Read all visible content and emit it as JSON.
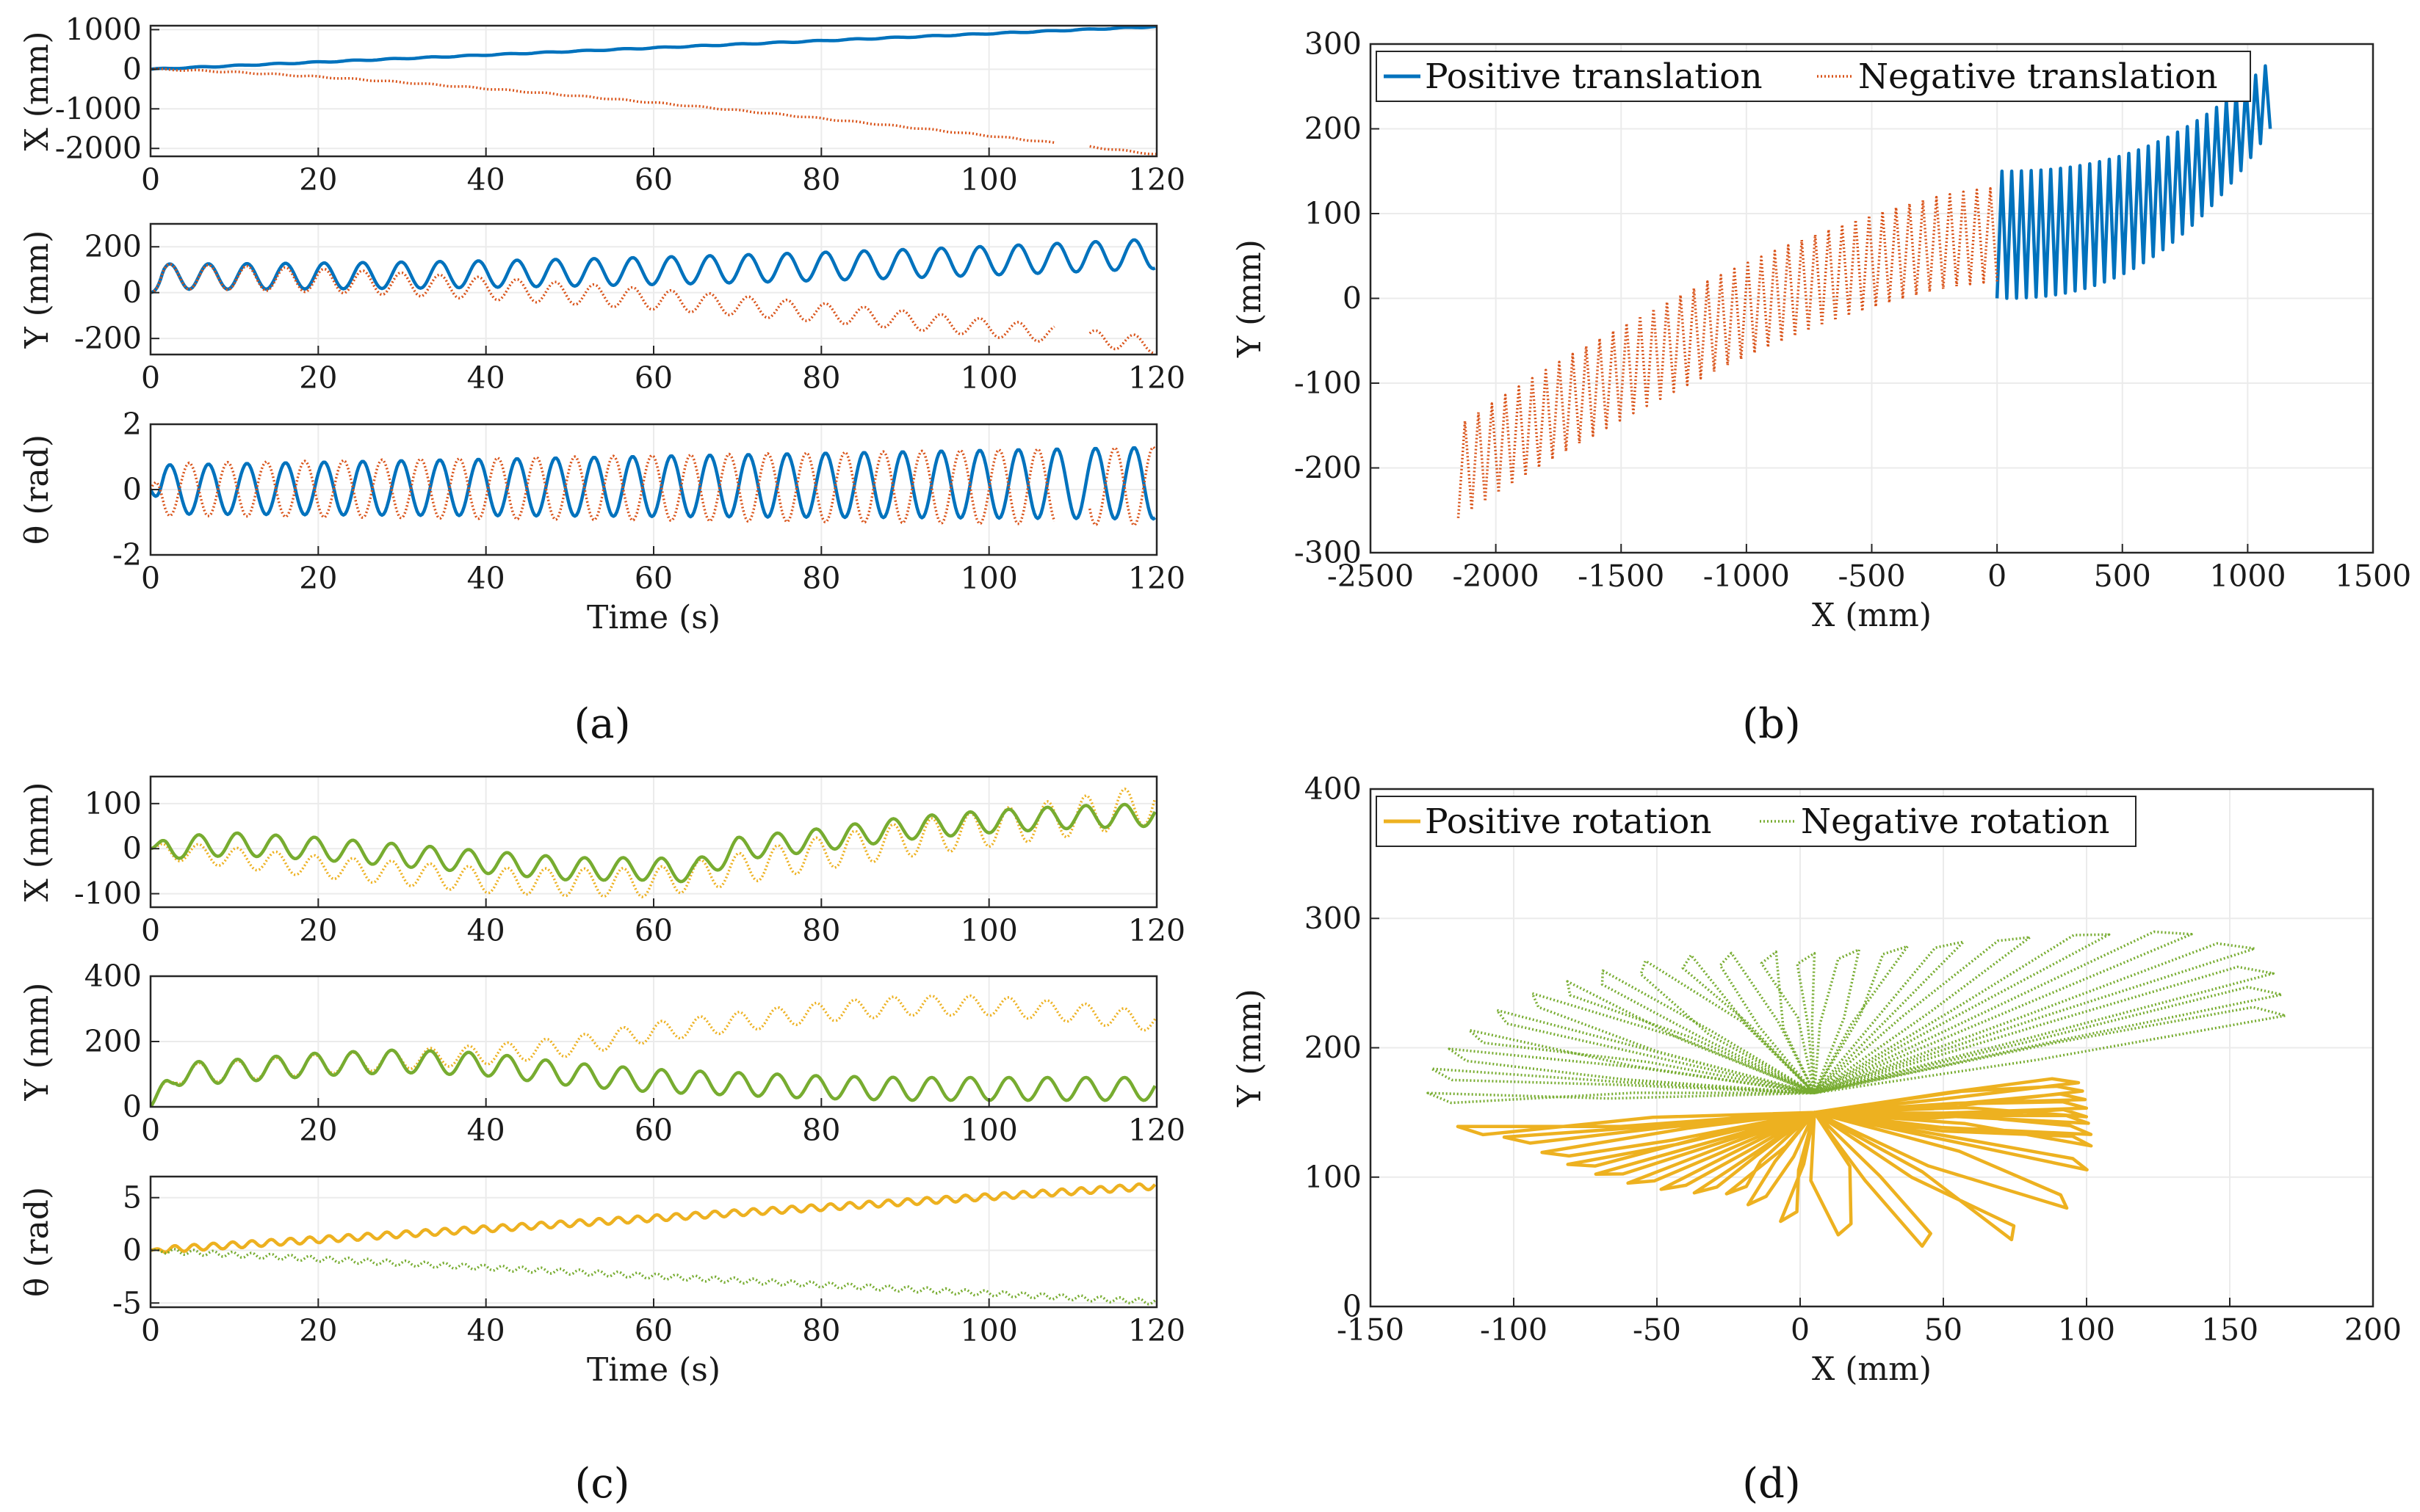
{
  "colors": {
    "pos_translation": "#0072bd",
    "neg_translation": "#d95319",
    "pos_rotation": "#edb120",
    "neg_rotation": "#77ac30",
    "grid": "#ebebeb",
    "axis": "#262626"
  },
  "panel_labels": {
    "a": "(a)",
    "b": "(b)",
    "c": "(c)",
    "d": "(d)"
  },
  "chart_data": [
    {
      "id": "a1",
      "type": "line",
      "panel": "a",
      "ylabel": "X (mm)",
      "xlabel": "",
      "xlim": [
        0,
        120
      ],
      "ylim": [
        -2200,
        1100
      ],
      "xticks": [
        0,
        20,
        40,
        60,
        80,
        100,
        120
      ],
      "yticks": [
        -2000,
        -1000,
        0,
        1000
      ],
      "grid": true,
      "series": [
        {
          "name": "Positive translation",
          "color": "pos_translation",
          "style": "solid",
          "gen": {
            "kind": "drift",
            "end": 1080,
            "power": 1.0,
            "amp": 12,
            "period": 4.6
          }
        },
        {
          "name": "Negative translation",
          "color": "neg_translation",
          "style": "dotted",
          "gen": {
            "kind": "drift",
            "end": -2150,
            "power": 1.35,
            "amp": 14,
            "period": 4.6,
            "gap": [
              108,
              112
            ]
          }
        }
      ]
    },
    {
      "id": "a2",
      "type": "line",
      "panel": "a",
      "ylabel": "Y (mm)",
      "xlabel": "",
      "xlim": [
        0,
        120
      ],
      "ylim": [
        -270,
        300
      ],
      "xticks": [
        0,
        20,
        40,
        60,
        80,
        100,
        120
      ],
      "yticks": [
        -200,
        0,
        200
      ],
      "grid": true,
      "series": [
        {
          "name": "Positive translation",
          "color": "pos_translation",
          "style": "solid",
          "gen": {
            "kind": "osc",
            "c0": 70,
            "c1": 170,
            "a0": 55,
            "a1": 65,
            "period": 4.6,
            "power": 2
          }
        },
        {
          "name": "Negative translation",
          "color": "neg_translation",
          "style": "dotted",
          "gen": {
            "kind": "osc",
            "c0": 70,
            "c1": -230,
            "a0": 55,
            "a1": 35,
            "period": 4.6,
            "power": 1.6,
            "gap": [
              108,
              112
            ]
          }
        }
      ]
    },
    {
      "id": "a3",
      "type": "line",
      "panel": "a",
      "ylabel": "θ (rad)",
      "xlabel": "Time (s)",
      "xlim": [
        0,
        120
      ],
      "ylim": [
        -2,
        2
      ],
      "xticks": [
        0,
        20,
        40,
        60,
        80,
        100,
        120
      ],
      "yticks": [
        -2,
        0,
        2
      ],
      "grid": true,
      "series": [
        {
          "name": "Positive translation",
          "color": "pos_translation",
          "style": "solid",
          "gen": {
            "kind": "osc",
            "c0": 0,
            "c1": 0.2,
            "a0": 0.75,
            "a1": 1.1,
            "period": 4.6,
            "power": 1
          }
        },
        {
          "name": "Negative translation",
          "color": "neg_translation",
          "style": "dotted",
          "gen": {
            "kind": "osc",
            "c0": 0,
            "c1": 0.1,
            "a0": 0.8,
            "a1": 1.2,
            "period": 4.6,
            "power": 1,
            "phase": 3.14159,
            "gap": [
              108,
              112
            ]
          }
        }
      ]
    },
    {
      "id": "b",
      "type": "line",
      "panel": "b",
      "title": "",
      "xlabel": "X (mm)",
      "ylabel": "Y (mm)",
      "xlim": [
        -2500,
        1500
      ],
      "ylim": [
        -300,
        300
      ],
      "xticks": [
        -2500,
        -2000,
        -1500,
        -1000,
        -500,
        0,
        500,
        1000,
        1500
      ],
      "yticks": [
        -300,
        -200,
        -100,
        0,
        100,
        200,
        300
      ],
      "grid": true,
      "legend": {
        "position": "top-left",
        "entries": [
          {
            "label": "Positive translation",
            "color": "pos_translation",
            "style": "solid"
          },
          {
            "label": "Negative translation",
            "color": "neg_translation",
            "style": "dotted"
          }
        ]
      },
      "series": [
        {
          "name": "Positive translation",
          "color": "pos_translation",
          "style": "solid",
          "gen": {
            "kind": "zig",
            "x0": 0,
            "x1": 1090,
            "n": 28,
            "loA": 0,
            "loB": 200,
            "hiA": 150,
            "hiB": 280,
            "loP": 2.5,
            "hiP": 2.5
          }
        },
        {
          "name": "Negative translation",
          "color": "neg_translation",
          "style": "dotted",
          "gen": {
            "kind": "zig",
            "x0": 0,
            "x1": -2150,
            "n": 40,
            "loA": 20,
            "loB": -260,
            "hiA": 130,
            "hiB": -150,
            "loP": 1.5,
            "hiP": 1.5
          }
        }
      ]
    },
    {
      "id": "c1",
      "type": "line",
      "panel": "c",
      "ylabel": "X (mm)",
      "xlabel": "",
      "xlim": [
        0,
        120
      ],
      "ylim": [
        -130,
        160
      ],
      "xticks": [
        0,
        20,
        40,
        60,
        80,
        100,
        120
      ],
      "yticks": [
        -100,
        0,
        100
      ],
      "grid": true,
      "series": [
        {
          "name": "Positive rotation",
          "color": "pos_rotation",
          "style": "dotted",
          "gen": {
            "kind": "pts",
            "pts": [
              [
                0,
                0
              ],
              [
                10,
                -20
              ],
              [
                20,
                -40
              ],
              [
                30,
                -55
              ],
              [
                40,
                -70
              ],
              [
                50,
                -75
              ],
              [
                60,
                -75
              ],
              [
                70,
                -45
              ],
              [
                80,
                -10
              ],
              [
                90,
                20
              ],
              [
                100,
                45
              ],
              [
                110,
                70
              ],
              [
                120,
                100
              ]
            ],
            "amp0": 20,
            "amp1": 45,
            "period": 4.6
          }
        },
        {
          "name": "Negative rotation",
          "color": "neg_rotation",
          "style": "solid",
          "gen": {
            "kind": "pts",
            "pts": [
              [
                0,
                0
              ],
              [
                10,
                10
              ],
              [
                20,
                0
              ],
              [
                30,
                -15
              ],
              [
                40,
                -30
              ],
              [
                50,
                -45
              ],
              [
                60,
                -45
              ],
              [
                65,
                -50
              ],
              [
                70,
                0
              ],
              [
                80,
                20
              ],
              [
                90,
                45
              ],
              [
                100,
                60
              ],
              [
                110,
                70
              ],
              [
                120,
                75
              ]
            ],
            "amp0": 25,
            "amp1": 25,
            "period": 4.6
          }
        }
      ]
    },
    {
      "id": "c2",
      "type": "line",
      "panel": "c",
      "ylabel": "Y (mm)",
      "xlabel": "",
      "xlim": [
        0,
        120
      ],
      "ylim": [
        0,
        400
      ],
      "xticks": [
        0,
        20,
        40,
        60,
        80,
        100,
        120
      ],
      "yticks": [
        0,
        200,
        400
      ],
      "grid": true,
      "series": [
        {
          "name": "Positive rotation",
          "color": "pos_rotation",
          "style": "dotted",
          "gen": {
            "kind": "pts",
            "pts": [
              [
                0,
                0
              ],
              [
                3,
                100
              ],
              [
                10,
                110
              ],
              [
                20,
                130
              ],
              [
                30,
                145
              ],
              [
                40,
                160
              ],
              [
                50,
                185
              ],
              [
                60,
                230
              ],
              [
                70,
                260
              ],
              [
                80,
                290
              ],
              [
                90,
                310
              ],
              [
                100,
                310
              ],
              [
                110,
                290
              ],
              [
                120,
                260
              ]
            ],
            "amp0": 30,
            "amp1": 30,
            "period": 4.6
          }
        },
        {
          "name": "Negative rotation",
          "color": "neg_rotation",
          "style": "solid",
          "gen": {
            "kind": "pts",
            "pts": [
              [
                0,
                0
              ],
              [
                3,
                100
              ],
              [
                10,
                110
              ],
              [
                20,
                130
              ],
              [
                30,
                140
              ],
              [
                40,
                130
              ],
              [
                50,
                100
              ],
              [
                60,
                80
              ],
              [
                70,
                70
              ],
              [
                80,
                60
              ],
              [
                90,
                55
              ],
              [
                100,
                55
              ],
              [
                110,
                55
              ],
              [
                120,
                55
              ]
            ],
            "amp0": 35,
            "amp1": 35,
            "period": 4.6
          }
        }
      ]
    },
    {
      "id": "c3",
      "type": "line",
      "panel": "c",
      "ylabel": "θ (rad)",
      "xlabel": "Time (s)",
      "xlim": [
        0,
        120
      ],
      "ylim": [
        -5.4,
        7
      ],
      "xticks": [
        0,
        20,
        40,
        60,
        80,
        100,
        120
      ],
      "yticks": [
        -5,
        0,
        5
      ],
      "grid": true,
      "series": [
        {
          "name": "Positive rotation",
          "color": "pos_rotation",
          "style": "solid",
          "gen": {
            "kind": "pts",
            "pts": [
              [
                0,
                0
              ],
              [
                120,
                6.1
              ]
            ],
            "amp0": 0.3,
            "amp1": 0.3,
            "period": 2.3
          }
        },
        {
          "name": "Negative rotation",
          "color": "neg_rotation",
          "style": "dotted",
          "gen": {
            "kind": "pts",
            "pts": [
              [
                0,
                0
              ],
              [
                120,
                -4.9
              ]
            ],
            "amp0": 0.25,
            "amp1": 0.25,
            "period": 2.3
          }
        }
      ]
    },
    {
      "id": "d",
      "type": "line",
      "panel": "d",
      "title": "",
      "xlabel": "X (mm)",
      "ylabel": "Y (mm)",
      "xlim": [
        -150,
        200
      ],
      "ylim": [
        0,
        400
      ],
      "xticks": [
        -150,
        -100,
        -50,
        0,
        50,
        100,
        150,
        200
      ],
      "yticks": [
        0,
        100,
        200,
        300,
        400
      ],
      "grid": true,
      "legend": {
        "position": "top-left",
        "entries": [
          {
            "label": "Positive rotation",
            "color": "pos_rotation",
            "style": "solid"
          },
          {
            "label": "Negative rotation",
            "color": "neg_rotation",
            "style": "dotted"
          }
        ]
      },
      "series": [
        {
          "name": "Positive rotation",
          "color": "pos_rotation",
          "style": "solid",
          "gen": {
            "kind": "fan",
            "cx": 5,
            "cy": 150,
            "angles": [
              185,
              190,
              198,
              205,
              212,
              220,
              228,
              236,
              244,
              252,
              262,
              275,
              290,
              305,
              320,
              335,
              345,
              350,
              355,
              358,
              2,
              6,
              10,
              14
            ],
            "radii": [
              125,
              110,
              100,
              95,
              90,
              85,
              80,
              75,
              70,
              75,
              85,
              95,
              110,
              120,
              115,
              105,
              100,
              98,
              96,
              95,
              95,
              95,
              95,
              95
            ],
            "jitter": 18
          }
        },
        {
          "name": "Negative rotation",
          "color": "neg_rotation",
          "style": "dotted",
          "gen": {
            "kind": "fan",
            "cx": 5,
            "cy": 165,
            "angles": [
              180,
              172,
              165,
              158,
              150,
              142,
              135,
              128,
              120,
              112,
              105,
              97,
              90,
              82,
              74,
              66,
              58,
              50,
              43,
              36,
              30,
              25,
              20
            ],
            "radii": [
              135,
              135,
              132,
              130,
              128,
              125,
              122,
              120,
              118,
              115,
              112,
              110,
              108,
              112,
              118,
              128,
              142,
              160,
              180,
              190,
              185,
              180,
              175
            ],
            "jitter": 14
          }
        }
      ]
    }
  ]
}
